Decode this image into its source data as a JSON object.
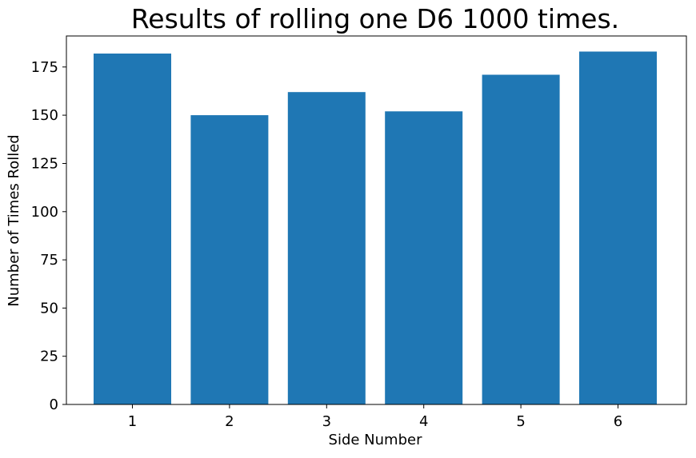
{
  "chart_data": {
    "type": "bar",
    "title": "Results of rolling one D6 1000 times.",
    "xlabel": "Side Number",
    "ylabel": "Number of Times Rolled",
    "categories": [
      "1",
      "2",
      "3",
      "4",
      "5",
      "6"
    ],
    "values": [
      182,
      150,
      162,
      152,
      171,
      183
    ],
    "ylim": [
      0,
      191.1
    ],
    "yticks": [
      0,
      25,
      50,
      75,
      100,
      125,
      150,
      175
    ],
    "bar_color": "#1f77b4",
    "grid": false,
    "legend": false
  }
}
